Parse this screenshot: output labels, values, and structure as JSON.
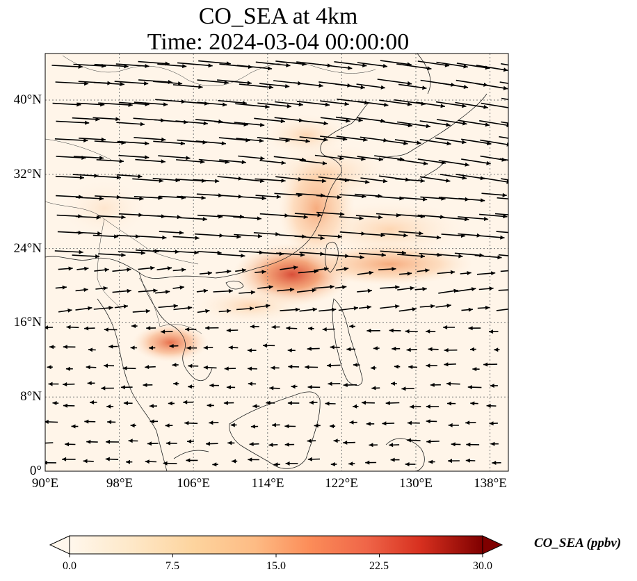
{
  "title": {
    "line1": "CO_SEA at 4km",
    "line2": "Time: 2024-03-04 00:00:00"
  },
  "map": {
    "lat_range": [
      0,
      44
    ],
    "lon_range": [
      90,
      140
    ],
    "lat_ticks": [
      "0°",
      "8°N",
      "16°N",
      "24°N",
      "32°N",
      "40°N"
    ],
    "lon_ticks": [
      "90°E",
      "98°E",
      "106°E",
      "114°E",
      "122°E",
      "130°E",
      "138°E"
    ],
    "gridlines": "dotted",
    "wind_vectors": "shown"
  },
  "colorbar": {
    "label": "CO_SEA (ppbv)",
    "ticks": [
      "0.0",
      "7.5",
      "15.0",
      "22.5",
      "30.0"
    ],
    "range": [
      0,
      30
    ],
    "colormap": "OrRd",
    "extend": "both"
  }
}
